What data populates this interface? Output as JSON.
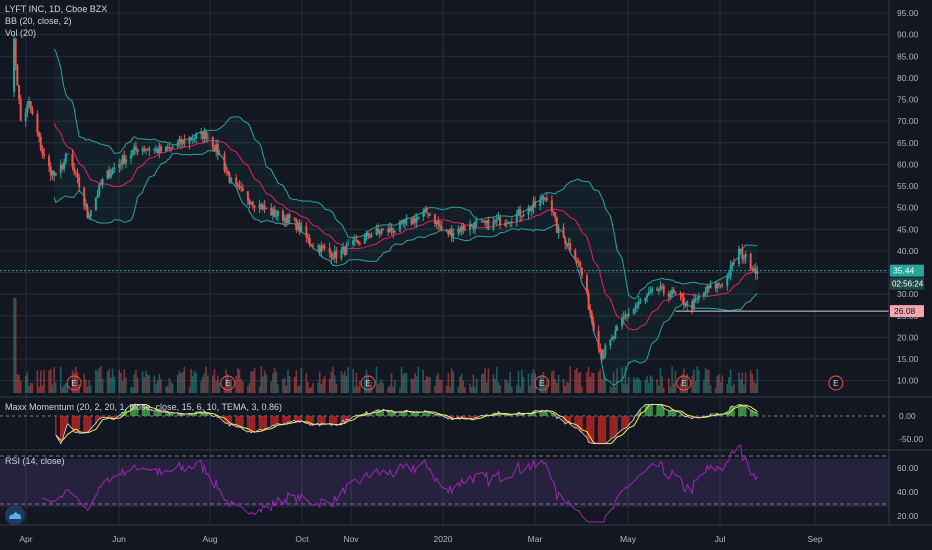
{
  "header": {
    "symbol_line": "LYFT INC, 1D, Cboe BZX",
    "bb_line": "BB (20, close, 2)",
    "vol_line": "Vol (20)"
  },
  "momentum_panel": {
    "title": "Maxx Momentum (20, 2, 20, 1, close, close, 15, 6, 10, TEMA, 3, 0.86)"
  },
  "rsi_panel": {
    "title": "RSI (14, close)"
  },
  "price_scale": {
    "ticks": [
      "95.00",
      "90.00",
      "85.00",
      "80.00",
      "75.00",
      "70.00",
      "65.00",
      "60.00",
      "55.00",
      "50.00",
      "45.00",
      "40.00",
      "35.00",
      "30.00",
      "25.00",
      "20.00",
      "15.00",
      "10.00"
    ],
    "last_price": "35.44",
    "countdown": "02:56:24",
    "level_badge": "26.08"
  },
  "momentum_scale": {
    "ticks": [
      "0.00",
      "-50.00"
    ]
  },
  "rsi_scale": {
    "ticks": [
      "60.00",
      "40.00",
      "20.00"
    ]
  },
  "time_axis": {
    "labels": [
      "Apr",
      "Jun",
      "Aug",
      "Oct",
      "Nov",
      "2020",
      "Mar",
      "May",
      "Jul",
      "Sep"
    ]
  },
  "earnings_marker": "E",
  "colors": {
    "background": "#131722",
    "up": "#26a69a",
    "down": "#ef5350",
    "bb_band": "#26a69a",
    "bb_basis": "#e91e63",
    "rsi_line": "#9c27b0",
    "rsi_band": "#7e57c2",
    "badge_green": "#26a69a",
    "badge_red": "#f5a6ad"
  },
  "chart_data": {
    "type": "candlestick",
    "symbol": "LYFT INC",
    "interval": "1D",
    "exchange": "Cboe BZX",
    "price_ylim": [
      8,
      97
    ],
    "last_price": 35.44,
    "horizontal_level": 26.08,
    "price_path": [
      [
        "2019-03-29",
        78
      ],
      [
        "2019-04-01",
        88
      ],
      [
        "2019-04-05",
        70
      ],
      [
        "2019-04-10",
        74
      ],
      [
        "2019-04-20",
        60
      ],
      [
        "2019-04-26",
        57
      ],
      [
        "2019-05-03",
        62
      ],
      [
        "2019-05-10",
        55
      ],
      [
        "2019-05-15",
        48
      ],
      [
        "2019-05-25",
        57
      ],
      [
        "2019-06-05",
        61
      ],
      [
        "2019-06-15",
        64
      ],
      [
        "2019-06-30",
        63
      ],
      [
        "2019-07-15",
        66
      ],
      [
        "2019-07-25",
        67
      ],
      [
        "2019-08-01",
        63
      ],
      [
        "2019-08-10",
        55
      ],
      [
        "2019-08-20",
        52
      ],
      [
        "2019-09-01",
        49
      ],
      [
        "2019-09-15",
        47
      ],
      [
        "2019-09-25",
        42
      ],
      [
        "2019-10-05",
        40
      ],
      [
        "2019-10-10",
        39
      ],
      [
        "2019-10-20",
        41
      ],
      [
        "2019-11-01",
        44
      ],
      [
        "2019-11-15",
        45
      ],
      [
        "2019-11-25",
        47
      ],
      [
        "2019-12-05",
        49
      ],
      [
        "2019-12-15",
        44
      ],
      [
        "2019-12-31",
        46
      ],
      [
        "2020-01-10",
        46
      ],
      [
        "2020-01-25",
        48
      ],
      [
        "2020-02-05",
        50
      ],
      [
        "2020-02-15",
        53
      ],
      [
        "2020-02-20",
        45
      ],
      [
        "2020-03-01",
        40
      ],
      [
        "2020-03-05",
        36
      ],
      [
        "2020-03-12",
        24
      ],
      [
        "2020-03-18",
        16
      ],
      [
        "2020-03-25",
        20
      ],
      [
        "2020-04-01",
        25
      ],
      [
        "2020-04-10",
        28
      ],
      [
        "2020-04-20",
        31
      ],
      [
        "2020-04-30",
        30
      ],
      [
        "2020-05-10",
        27
      ],
      [
        "2020-05-20",
        31
      ],
      [
        "2020-05-31",
        33
      ],
      [
        "2020-06-08",
        40
      ],
      [
        "2020-06-15",
        37
      ],
      [
        "2020-06-19",
        35.44
      ]
    ],
    "earnings_dates": [
      "2019-05-07",
      "2019-08-07",
      "2019-10-30",
      "2020-02-11",
      "2020-05-06",
      "2020-08-05"
    ],
    "rsi_levels": [
      70,
      30
    ],
    "momentum_levels": [
      0,
      -50
    ]
  }
}
